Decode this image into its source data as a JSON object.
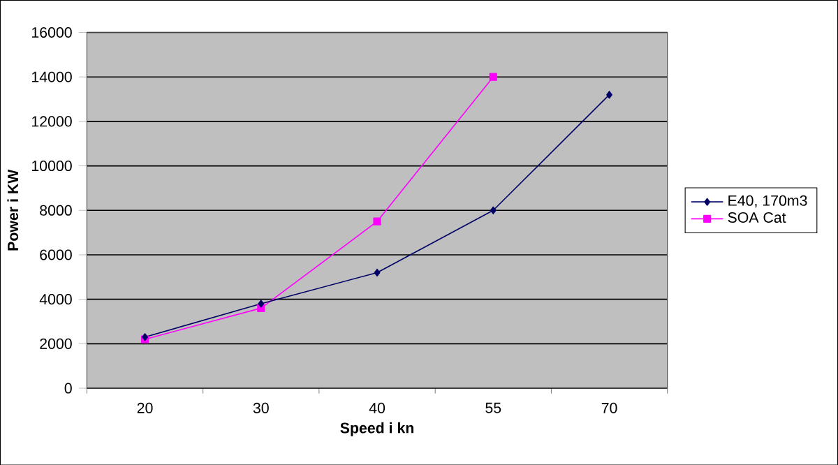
{
  "chart_data": {
    "type": "line",
    "xlabel": "Speed i kn",
    "ylabel": "Power i KW",
    "categories": [
      "20",
      "30",
      "40",
      "55",
      "70"
    ],
    "series": [
      {
        "name": "E40, 170m3",
        "color": "#000066",
        "marker": "diamond",
        "values": [
          2300,
          3800,
          5200,
          8000,
          13200
        ]
      },
      {
        "name": "SOA Cat",
        "color": "#ff00ff",
        "marker": "square",
        "values": [
          2200,
          3600,
          7500,
          14000,
          null
        ]
      }
    ],
    "ylim": [
      0,
      16000
    ],
    "yticks": [
      0,
      2000,
      4000,
      6000,
      8000,
      10000,
      12000,
      14000,
      16000
    ],
    "grid": "y",
    "legend": "right",
    "line_style": "solid"
  }
}
